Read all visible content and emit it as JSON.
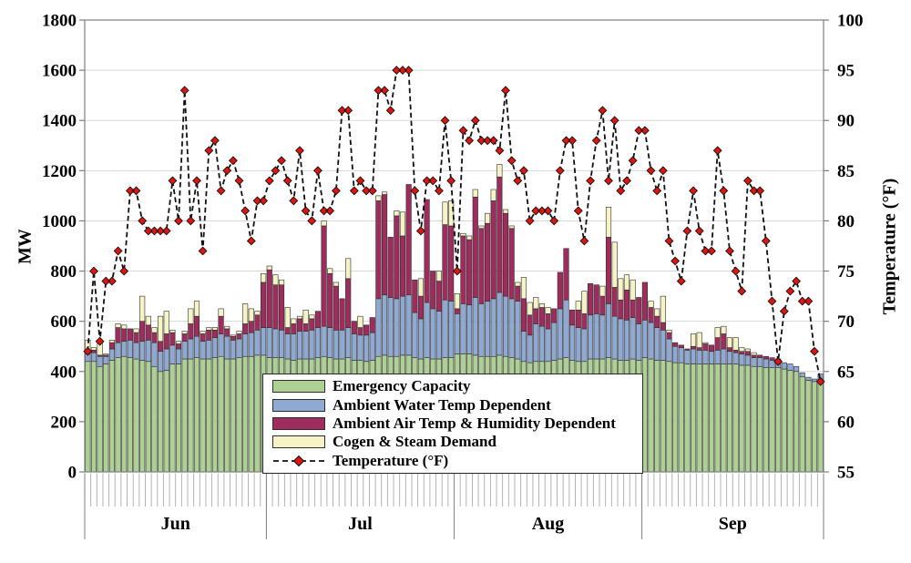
{
  "chart_data": {
    "type": "combo-stacked-bar-line",
    "title": "",
    "left_axis": {
      "label": "MW",
      "min": 0,
      "max": 1800,
      "tick_step": 200,
      "ticks": [
        0,
        200,
        400,
        600,
        800,
        1000,
        1200,
        1400,
        1600,
        1800
      ]
    },
    "right_axis": {
      "label": "Temperature (°F)",
      "min": 55,
      "max": 100,
      "tick_step": 5,
      "ticks": [
        55,
        60,
        65,
        70,
        75,
        80,
        85,
        90,
        95,
        100
      ]
    },
    "x_axis": {
      "months": [
        {
          "label": "Jun",
          "days": 30
        },
        {
          "label": "Jul",
          "days": 31
        },
        {
          "label": "Aug",
          "days": 31
        },
        {
          "label": "Sep",
          "days": 30
        }
      ]
    },
    "grid": "horizontal-light-gray",
    "legend_position": "inside-bottom-center",
    "bar_series": [
      {
        "name": "Emergency Capacity",
        "color": "#aed094",
        "border_color": "#2d2d2d",
        "values": [
          440,
          440,
          420,
          430,
          445,
          455,
          460,
          455,
          450,
          445,
          440,
          420,
          400,
          405,
          430,
          430,
          450,
          450,
          455,
          450,
          450,
          455,
          460,
          450,
          450,
          455,
          460,
          460,
          465,
          465,
          455,
          455,
          455,
          450,
          445,
          450,
          450,
          450,
          455,
          460,
          455,
          450,
          450,
          455,
          445,
          445,
          440,
          445,
          460,
          465,
          460,
          460,
          465,
          465,
          455,
          450,
          455,
          450,
          450,
          455,
          455,
          470,
          470,
          470,
          465,
          460,
          460,
          460,
          465,
          460,
          455,
          450,
          440,
          435,
          440,
          440,
          440,
          445,
          450,
          455,
          445,
          440,
          440,
          450,
          450,
          450,
          455,
          450,
          445,
          445,
          450,
          445,
          455,
          450,
          445,
          445,
          440,
          435,
          435,
          430,
          430,
          430,
          430,
          430,
          430,
          430,
          430,
          430,
          425,
          425,
          420,
          420,
          415,
          415,
          415,
          410,
          405,
          400,
          380,
          365,
          360,
          355
        ]
      },
      {
        "name": "Ambient Water Temp Dependent",
        "color": "#8fa9d3",
        "border_color": "#2d2d2d",
        "values": [
          30,
          35,
          40,
          30,
          45,
          60,
          60,
          70,
          65,
          75,
          85,
          95,
          80,
          85,
          75,
          60,
          70,
          80,
          85,
          70,
          75,
          80,
          90,
          90,
          75,
          75,
          90,
          95,
          100,
          110,
          120,
          115,
          110,
          100,
          105,
          110,
          110,
          115,
          120,
          120,
          120,
          115,
          115,
          120,
          105,
          100,
          105,
          110,
          230,
          240,
          235,
          230,
          235,
          240,
          180,
          160,
          220,
          200,
          190,
          230,
          225,
          160,
          200,
          195,
          230,
          210,
          220,
          230,
          250,
          240,
          235,
          230,
          120,
          110,
          150,
          140,
          130,
          150,
          200,
          230,
          140,
          135,
          130,
          175,
          180,
          175,
          215,
          170,
          165,
          160,
          165,
          145,
          150,
          145,
          130,
          120,
          90,
          65,
          60,
          55,
          60,
          55,
          55,
          50,
          55,
          60,
          50,
          45,
          45,
          40,
          35,
          35,
          35,
          30,
          30,
          25,
          25,
          20,
          15,
          12,
          10,
          35
        ]
      },
      {
        "name": "Ambient Air Temp & Humidity Dependent",
        "color": "#9e2d5d",
        "border_color": "#2d2d2d",
        "values": [
          15,
          10,
          5,
          5,
          25,
          60,
          50,
          45,
          40,
          80,
          60,
          40,
          40,
          60,
          50,
          20,
          30,
          60,
          80,
          30,
          40,
          30,
          70,
          30,
          15,
          20,
          40,
          45,
          60,
          180,
          230,
          175,
          180,
          25,
          40,
          50,
          30,
          45,
          65,
          400,
          215,
          175,
          125,
          195,
          50,
          30,
          40,
          60,
          390,
          400,
          240,
          330,
          240,
          440,
          130,
          90,
          410,
          150,
          120,
          300,
          300,
          20,
          270,
          260,
          400,
          300,
          310,
          390,
          460,
          330,
          280,
          60,
          130,
          80,
          60,
          75,
          60,
          55,
          145,
          205,
          60,
          70,
          60,
          125,
          115,
          75,
          265,
          115,
          75,
          120,
          70,
          105,
          150,
          60,
          45,
          30,
          25,
          15,
          10,
          5,
          10,
          10,
          25,
          25,
          50,
          60,
          15,
          10,
          10,
          15,
          10,
          10,
          10,
          10,
          5,
          0,
          0,
          0,
          0,
          0,
          0,
          0
        ]
      },
      {
        "name": "Cogen & Steam Demand",
        "color": "#f6f3c6",
        "border_color": "#2d2d2d",
        "values": [
          40,
          10,
          50,
          5,
          10,
          15,
          15,
          0,
          15,
          100,
          35,
          20,
          100,
          90,
          10,
          10,
          10,
          60,
          60,
          10,
          10,
          10,
          30,
          10,
          5,
          10,
          80,
          50,
          15,
          35,
          15,
          40,
          20,
          80,
          20,
          10,
          55,
          15,
          0,
          20,
          20,
          15,
          0,
          80,
          0,
          45,
          0,
          0,
          20,
          10,
          0,
          20,
          95,
          0,
          0,
          70,
          0,
          0,
          40,
          90,
          100,
          60,
          10,
          15,
          30,
          10,
          40,
          45,
          50,
          15,
          10,
          15,
          85,
          50,
          45,
          15,
          25,
          0,
          0,
          0,
          0,
          35,
          90,
          0,
          0,
          40,
          120,
          180,
          85,
          60,
          80,
          0,
          0,
          25,
          30,
          105,
          10,
          0,
          0,
          0,
          50,
          60,
          5,
          0,
          40,
          30,
          40,
          50,
          15,
          10,
          10,
          0,
          0,
          0,
          0,
          0,
          0,
          0,
          0,
          0,
          0,
          0
        ]
      }
    ],
    "line_series": {
      "name": "Temperature (°F)",
      "axis": "right",
      "line_color": "#111111",
      "line_style": "dashed",
      "marker": "diamond",
      "marker_color": "#e0140f",
      "values": [
        67,
        75,
        68,
        74,
        74,
        77,
        75,
        83,
        83,
        80,
        79,
        79,
        79,
        79,
        84,
        80,
        93,
        80,
        84,
        77,
        87,
        88,
        83,
        85,
        86,
        84,
        81,
        78,
        82,
        82,
        84,
        85,
        86,
        84,
        82,
        87,
        81,
        80,
        85,
        81,
        81,
        83,
        91,
        91,
        83,
        84,
        83,
        83,
        93,
        93,
        91,
        95,
        95,
        95,
        83,
        79,
        84,
        84,
        83,
        90,
        84,
        75,
        89,
        88,
        90,
        88,
        88,
        88,
        87,
        93,
        86,
        84,
        85,
        80,
        81,
        81,
        81,
        80,
        85,
        88,
        88,
        81,
        78,
        84,
        88,
        91,
        84,
        90,
        83,
        84,
        86,
        89,
        89,
        85,
        83,
        85,
        78,
        76,
        74,
        79,
        83,
        79,
        77,
        77,
        87,
        83,
        77,
        75,
        73,
        84,
        83,
        83,
        78,
        72,
        66,
        71,
        73,
        74,
        72,
        72,
        67,
        64
      ]
    }
  }
}
